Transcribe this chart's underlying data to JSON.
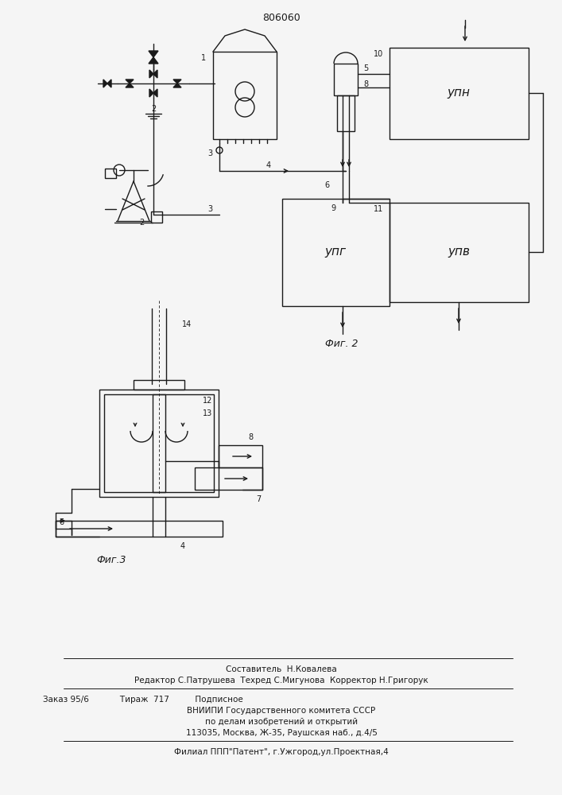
{
  "title": "806060",
  "fig2_label": "Фиг. 2",
  "fig3_label": "Фиг.3",
  "bg_color": "#f5f5f5",
  "line_color": "#1a1a1a",
  "upn_label": "упн",
  "upg_label": "упг",
  "upv_label": "упв",
  "footer_lines": [
    "Составитель  Н.Ковалева",
    "Редактор С.Патрушева  Техред С.Мигунова  Корректор Н.Григорук",
    "Заказ 95/6            Тираж  717          Подписное",
    "ВНИИПИ Государственного комитета СССР",
    "по делам изобретений и открытий",
    "113035, Москва, Ж-35, Раушская наб., д.4/5",
    "Филиал ППП\"Патент\", г.Ужгород,ул.Проектная,4"
  ]
}
